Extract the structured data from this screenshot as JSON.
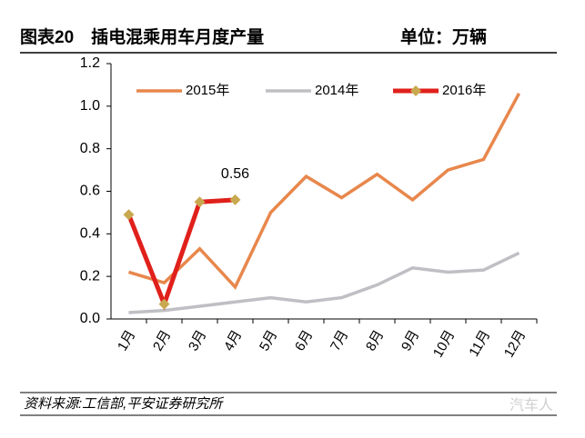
{
  "chart_data": {
    "type": "line",
    "title": "图表20　插电混乘用车月度产量",
    "unit": "单位：万辆",
    "source": "资料来源:工信部,平安证券研究所",
    "watermark": "汽车人",
    "categories": [
      "1月",
      "2月",
      "3月",
      "4月",
      "5月",
      "6月",
      "7月",
      "8月",
      "9月",
      "10月",
      "11月",
      "12月"
    ],
    "series": [
      {
        "name": "2015年",
        "color": "#e8874c",
        "values": [
          0.22,
          0.17,
          0.33,
          0.15,
          0.5,
          0.67,
          0.57,
          0.68,
          0.56,
          0.7,
          0.75,
          1.06
        ]
      },
      {
        "name": "2014年",
        "color": "#bfbfc4",
        "values": [
          0.03,
          0.04,
          0.06,
          0.08,
          0.1,
          0.08,
          0.1,
          0.16,
          0.24,
          0.22,
          0.23,
          0.31
        ]
      },
      {
        "name": "2016年",
        "color": "#e0201b",
        "marker_color": "#c9a94f",
        "values": [
          0.49,
          0.07,
          0.55,
          0.56,
          null,
          null,
          null,
          null,
          null,
          null,
          null,
          null
        ],
        "value_labels": [
          null,
          null,
          null,
          "0.56",
          null,
          null,
          null,
          null,
          null,
          null,
          null,
          null
        ]
      }
    ],
    "ylim": [
      0,
      1.2
    ],
    "yticks": [
      {
        "value": 0,
        "label": "0.0"
      },
      0.2,
      0.4,
      0.6,
      0.8,
      {
        "value": 1,
        "label": "1.0"
      },
      1.2
    ],
    "grid": false
  }
}
